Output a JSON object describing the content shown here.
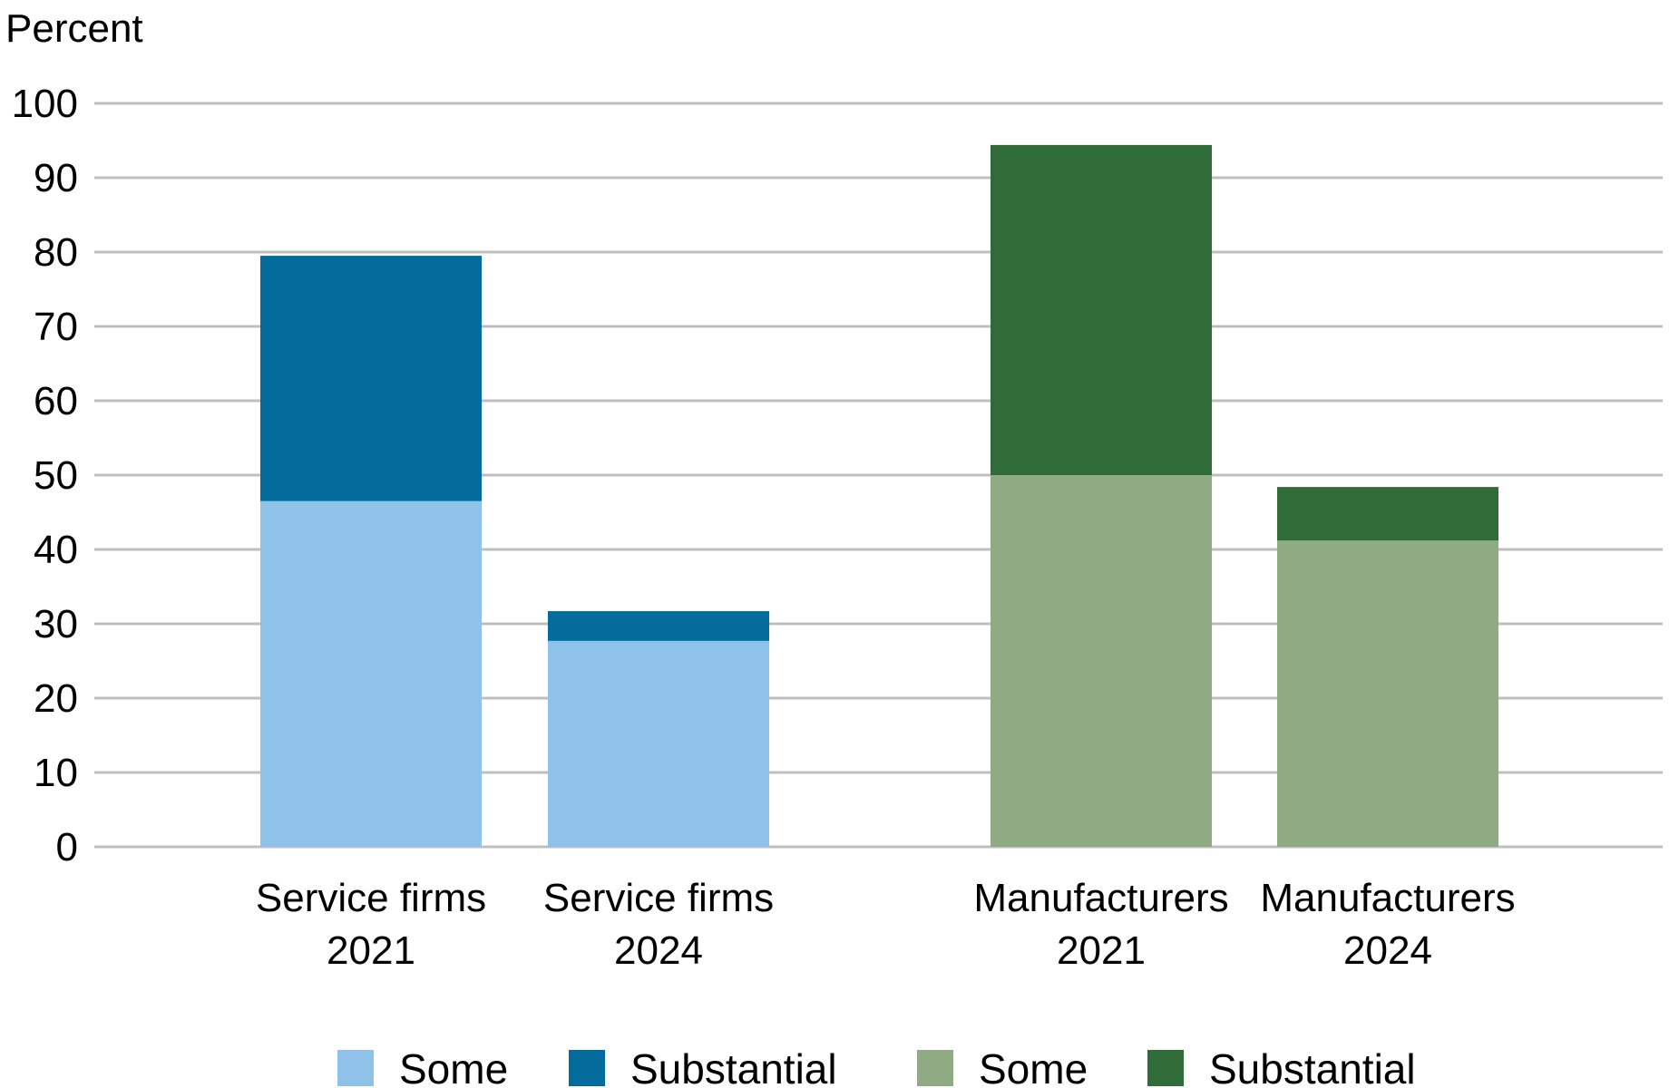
{
  "chart_data": {
    "type": "bar",
    "stacked": true,
    "ylabel": "Percent",
    "ylim": [
      0,
      100
    ],
    "yticks": [
      0,
      10,
      20,
      30,
      40,
      50,
      60,
      70,
      80,
      90,
      100
    ],
    "grid": true,
    "legend_position": "bottom",
    "categories": [
      [
        "Service firms",
        "2021"
      ],
      [
        "Service firms",
        "2024"
      ],
      [
        "Manufacturers",
        "2021"
      ],
      [
        "Manufacturers",
        "2024"
      ]
    ],
    "bars": [
      {
        "some": 46.5,
        "substantial": 33.0,
        "colors": {
          "some": "#8fc2e8",
          "substantial": "#046c9c"
        }
      },
      {
        "some": 27.7,
        "substantial": 4.0,
        "colors": {
          "some": "#8fc2e8",
          "substantial": "#046c9c"
        }
      },
      {
        "some": 50.0,
        "substantial": 44.4,
        "colors": {
          "some": "#90aa84",
          "substantial": "#2f6c37"
        }
      },
      {
        "some": 41.2,
        "substantial": 7.2,
        "colors": {
          "some": "#90aa84",
          "substantial": "#2f6c37"
        }
      }
    ],
    "legend": [
      {
        "label": "Some",
        "color": "#8fc2e8"
      },
      {
        "label": "Substantial",
        "color": "#046c9c"
      },
      {
        "label": "Some",
        "color": "#90aa84"
      },
      {
        "label": "Substantial",
        "color": "#2f6c37"
      }
    ],
    "grid_color": "#bfbfbf"
  }
}
